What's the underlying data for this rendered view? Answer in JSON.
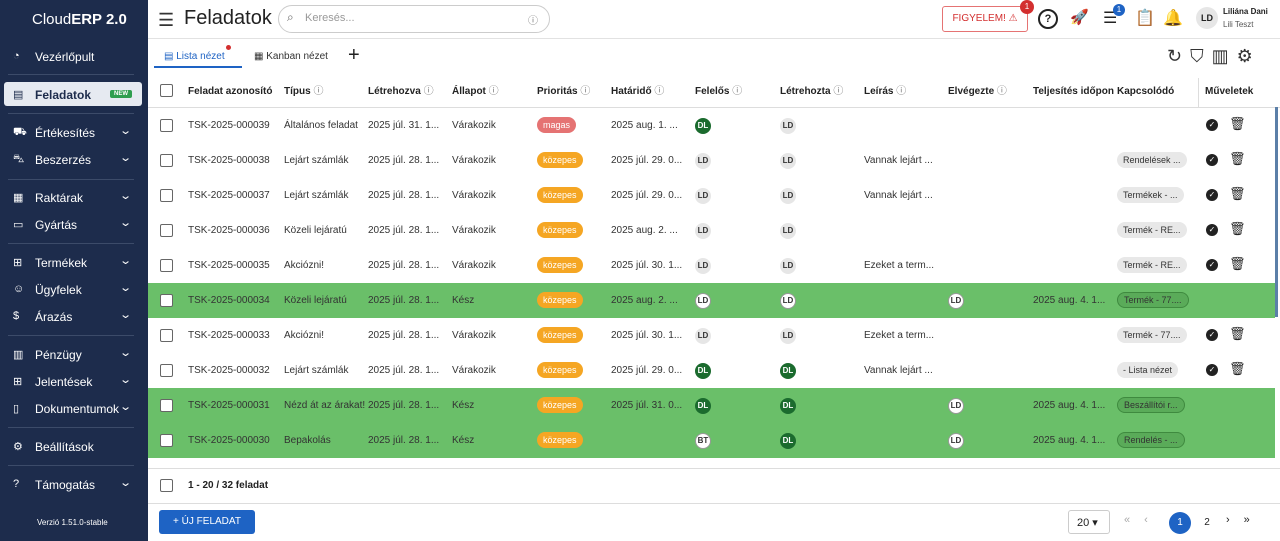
{
  "sidebar": {
    "brand_light": "Cloud",
    "brand_bold": "ERP 2.0",
    "items": [
      "Vezérlőpult",
      "Feladatok",
      "Értékesítés",
      "Beszerzés",
      "Raktárak",
      "Gyártás",
      "Termékek",
      "Ügyfelek",
      "Árazás",
      "Pénzügy",
      "Jelentések",
      "Dokumentumok",
      "Beállítások",
      "Támogatás"
    ],
    "badge": "NEW",
    "version": "Verzió 1.51.0-stable"
  },
  "header": {
    "title": "Feladatok",
    "search_placeholder": "Keresés...",
    "alert": "FIGYELEM! ⚠",
    "alert_badge": "1",
    "tasks_badge": "1",
    "user_initials": "LD",
    "user_name": "Liliána Dani",
    "user_sub": "Lili Teszt"
  },
  "tabs": [
    "Lista nézet",
    "Kanban nézet"
  ],
  "table": {
    "columns": [
      "Feladat azonosító",
      "Típus",
      "Létrehozva",
      "Állapot",
      "Prioritás",
      "Határidő",
      "Felelős",
      "Létrehozta",
      "Leírás",
      "Elvégezte",
      "Teljesítés időpon",
      "Kapcsolódó",
      "Műveletek"
    ],
    "rows": [
      [
        "TSK-2025-000039",
        "Általános feladat",
        "2025 júl. 31. 1...",
        "Várakozik",
        "magas",
        "2025 aug. 1. ...",
        "DL",
        "LD",
        null,
        null,
        null,
        null
      ],
      [
        "TSK-2025-000038",
        "Lejárt számlák",
        "2025 júl. 28. 1...",
        "Várakozik",
        "közepes",
        "2025 júl. 29. 0...",
        "LD",
        "LD",
        "Vannak lejárt ...",
        null,
        null,
        "Rendelések ..."
      ],
      [
        "TSK-2025-000037",
        "Lejárt számlák",
        "2025 júl. 28. 1...",
        "Várakozik",
        "közepes",
        "2025 júl. 29. 0...",
        "LD",
        "LD",
        "Vannak lejárt ...",
        null,
        null,
        "Termékek - ..."
      ],
      [
        "TSK-2025-000036",
        "Közeli lejáratú",
        "2025 júl. 28. 1...",
        "Várakozik",
        "közepes",
        "2025 aug. 2. ...",
        "LD",
        "LD",
        null,
        null,
        null,
        "Termék - RE..."
      ],
      [
        "TSK-2025-000035",
        "Akciózni!",
        "2025 júl. 28. 1...",
        "Várakozik",
        "közepes",
        "2025 júl. 30. 1...",
        "LD",
        "LD",
        "Ezeket a term...",
        null,
        null,
        "Termék - RE..."
      ],
      [
        "TSK-2025-000034",
        "Közeli lejáratú",
        "2025 júl. 28. 1...",
        "Kész",
        "közepes",
        "2025 aug. 2. ...",
        "LD",
        "LD",
        null,
        "LD",
        "2025 aug. 4. 1...",
        "Termék - 77...."
      ],
      [
        "TSK-2025-000033",
        "Akciózni!",
        "2025 júl. 28. 1...",
        "Várakozik",
        "közepes",
        "2025 júl. 30. 1...",
        "LD",
        "LD",
        "Ezeket a term...",
        null,
        null,
        "Termék - 77...."
      ],
      [
        "TSK-2025-000032",
        "Lejárt számlák",
        "2025 júl. 28. 1...",
        "Várakozik",
        "közepes",
        "2025 júl. 29. 0...",
        "DL",
        "DL",
        "Vannak lejárt ...",
        null,
        null,
        "- Lista nézet"
      ],
      [
        "TSK-2025-000031",
        "Nézd át az árakat!",
        "2025 júl. 28. 1...",
        "Kész",
        "közepes",
        "2025 júl. 31. 0...",
        "DL",
        "DL",
        null,
        "LD",
        "2025 aug. 4. 1...",
        "Beszállítói r..."
      ],
      [
        "TSK-2025-000030",
        "Bepakolás",
        "2025 júl. 28. 1...",
        "Kész",
        "közepes",
        null,
        "BT",
        "DL",
        null,
        "LD",
        "2025 aug. 4. 1...",
        "Rendelés - ..."
      ]
    ],
    "summary": "1 - 20 / 32 feladat"
  },
  "footer": {
    "button": "+ ÚJ FELADAT",
    "page_size": "20",
    "pages": [
      "1",
      "2"
    ]
  }
}
